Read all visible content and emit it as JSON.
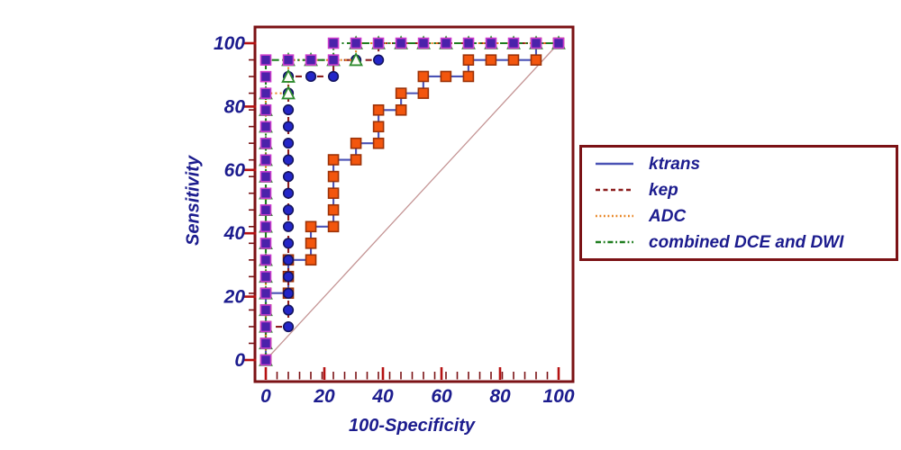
{
  "figure": {
    "kind": "ROC curve comparison plot",
    "background": "#ffffff"
  },
  "colors": {
    "axis_frame": "#7b1215",
    "major_tick": "#b51212",
    "text_navy": "#1c1c8e",
    "reference_line": "#c49494",
    "legend_border": "#7b1215"
  },
  "legend": {
    "items": [
      {
        "label": "ktrans"
      },
      {
        "label": "kep"
      },
      {
        "label": "ADC"
      },
      {
        "label": "combined DCE and DWI"
      }
    ]
  },
  "chart_data": {
    "type": "line",
    "title": "",
    "xlabel": "100-Specificity",
    "ylabel": "Sensitivity",
    "xlim": [
      0,
      100
    ],
    "ylim": [
      0,
      100
    ],
    "x_tick_labels": [
      "0",
      "20",
      "40",
      "60",
      "80",
      "100"
    ],
    "y_tick_labels": [
      "0",
      "20",
      "40",
      "60",
      "80",
      "100"
    ],
    "grid": false,
    "legend_position": "right",
    "reference_line": {
      "from": [
        0,
        0
      ],
      "to": [
        100,
        100
      ]
    },
    "marker_step": {
      "x": 7.692,
      "y": 5.263
    },
    "series": [
      {
        "name": "ktrans",
        "line_style": "solid",
        "line_color": "#4a52b5",
        "marker": "square",
        "marker_fill": "#f3560e",
        "marker_stroke": "#9c3208",
        "points": [
          [
            0,
            0
          ],
          [
            0,
            21.1
          ],
          [
            7.7,
            21.1
          ],
          [
            7.7,
            31.6
          ],
          [
            15.4,
            31.6
          ],
          [
            15.4,
            42.1
          ],
          [
            23.1,
            42.1
          ],
          [
            23.1,
            63.2
          ],
          [
            30.8,
            63.2
          ],
          [
            30.8,
            68.4
          ],
          [
            38.5,
            68.4
          ],
          [
            38.5,
            78.9
          ],
          [
            46.2,
            78.9
          ],
          [
            46.2,
            84.2
          ],
          [
            53.8,
            84.2
          ],
          [
            53.8,
            89.5
          ],
          [
            69.2,
            89.5
          ],
          [
            69.2,
            94.7
          ],
          [
            92.3,
            94.7
          ],
          [
            92.3,
            100
          ],
          [
            100,
            100
          ]
        ]
      },
      {
        "name": "kep",
        "line_style": "dashed",
        "line_color": "#8b1d1d",
        "marker": "circle",
        "marker_fill": "#2426c8",
        "marker_stroke": "#15155e",
        "points": [
          [
            0,
            0
          ],
          [
            0,
            10.5
          ],
          [
            7.7,
            10.5
          ],
          [
            7.7,
            89.5
          ],
          [
            23.1,
            89.5
          ],
          [
            23.1,
            94.7
          ],
          [
            38.5,
            94.7
          ],
          [
            38.5,
            100
          ],
          [
            100,
            100
          ]
        ]
      },
      {
        "name": "ADC",
        "line_style": "dotted",
        "line_color": "#e8821e",
        "marker": "triangle",
        "marker_fill": "#fffef8",
        "marker_stroke": "#2e8b2e",
        "points": [
          [
            0,
            0
          ],
          [
            0,
            84.2
          ],
          [
            7.7,
            84.2
          ],
          [
            7.7,
            94.7
          ],
          [
            30.8,
            94.7
          ],
          [
            30.8,
            100
          ],
          [
            100,
            100
          ]
        ]
      },
      {
        "name": "combined DCE and DWI",
        "line_style": "dashdot",
        "line_color": "#1e7d1e",
        "marker": "square",
        "marker_fill": "#4a22aa",
        "marker_stroke": "#cc3ecc",
        "points": [
          [
            0,
            0
          ],
          [
            0,
            94.7
          ],
          [
            23.1,
            94.7
          ],
          [
            23.1,
            100
          ],
          [
            100,
            100
          ]
        ]
      }
    ]
  }
}
